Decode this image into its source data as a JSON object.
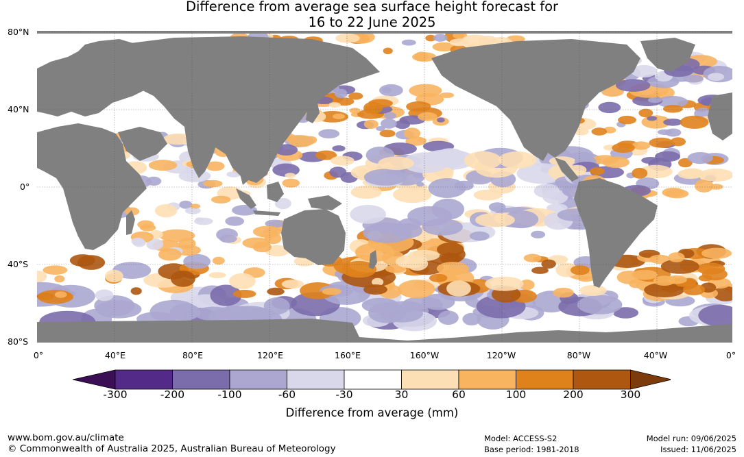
{
  "title_line1": "Difference from average sea surface height forecast for",
  "title_line2": "16 to 22 June 2025",
  "lat_labels": [
    "80°N",
    "40°N",
    "0°",
    "40°S",
    "80°S"
  ],
  "lon_labels": [
    "0°",
    "40°E",
    "80°E",
    "120°E",
    "160°E",
    "160°W",
    "120°W",
    "80°W",
    "40°W",
    "0°"
  ],
  "colorbar": {
    "ticks": [
      "-300",
      "-200",
      "-100",
      "-60",
      "-30",
      "30",
      "60",
      "100",
      "200",
      "300"
    ],
    "colors": [
      "#3b0f56",
      "#542a88",
      "#7b6dab",
      "#aba7d0",
      "#d9d8eb",
      "#ffffff",
      "#fddfb5",
      "#f8b45f",
      "#e0821c",
      "#ad5710",
      "#7d3a0a"
    ],
    "label": "Difference from average (mm)"
  },
  "land_color": "#808080",
  "footer": {
    "url": "www.bom.gov.au/climate",
    "copyright": "© Commonwealth of Australia 2025, Australian Bureau of Meteorology",
    "model": "Model: ACCESS-S2",
    "base_period": "Base period: 1981-2018",
    "model_run": "Model run: 09/06/2025",
    "issued": "Issued: 11/06/2025"
  }
}
